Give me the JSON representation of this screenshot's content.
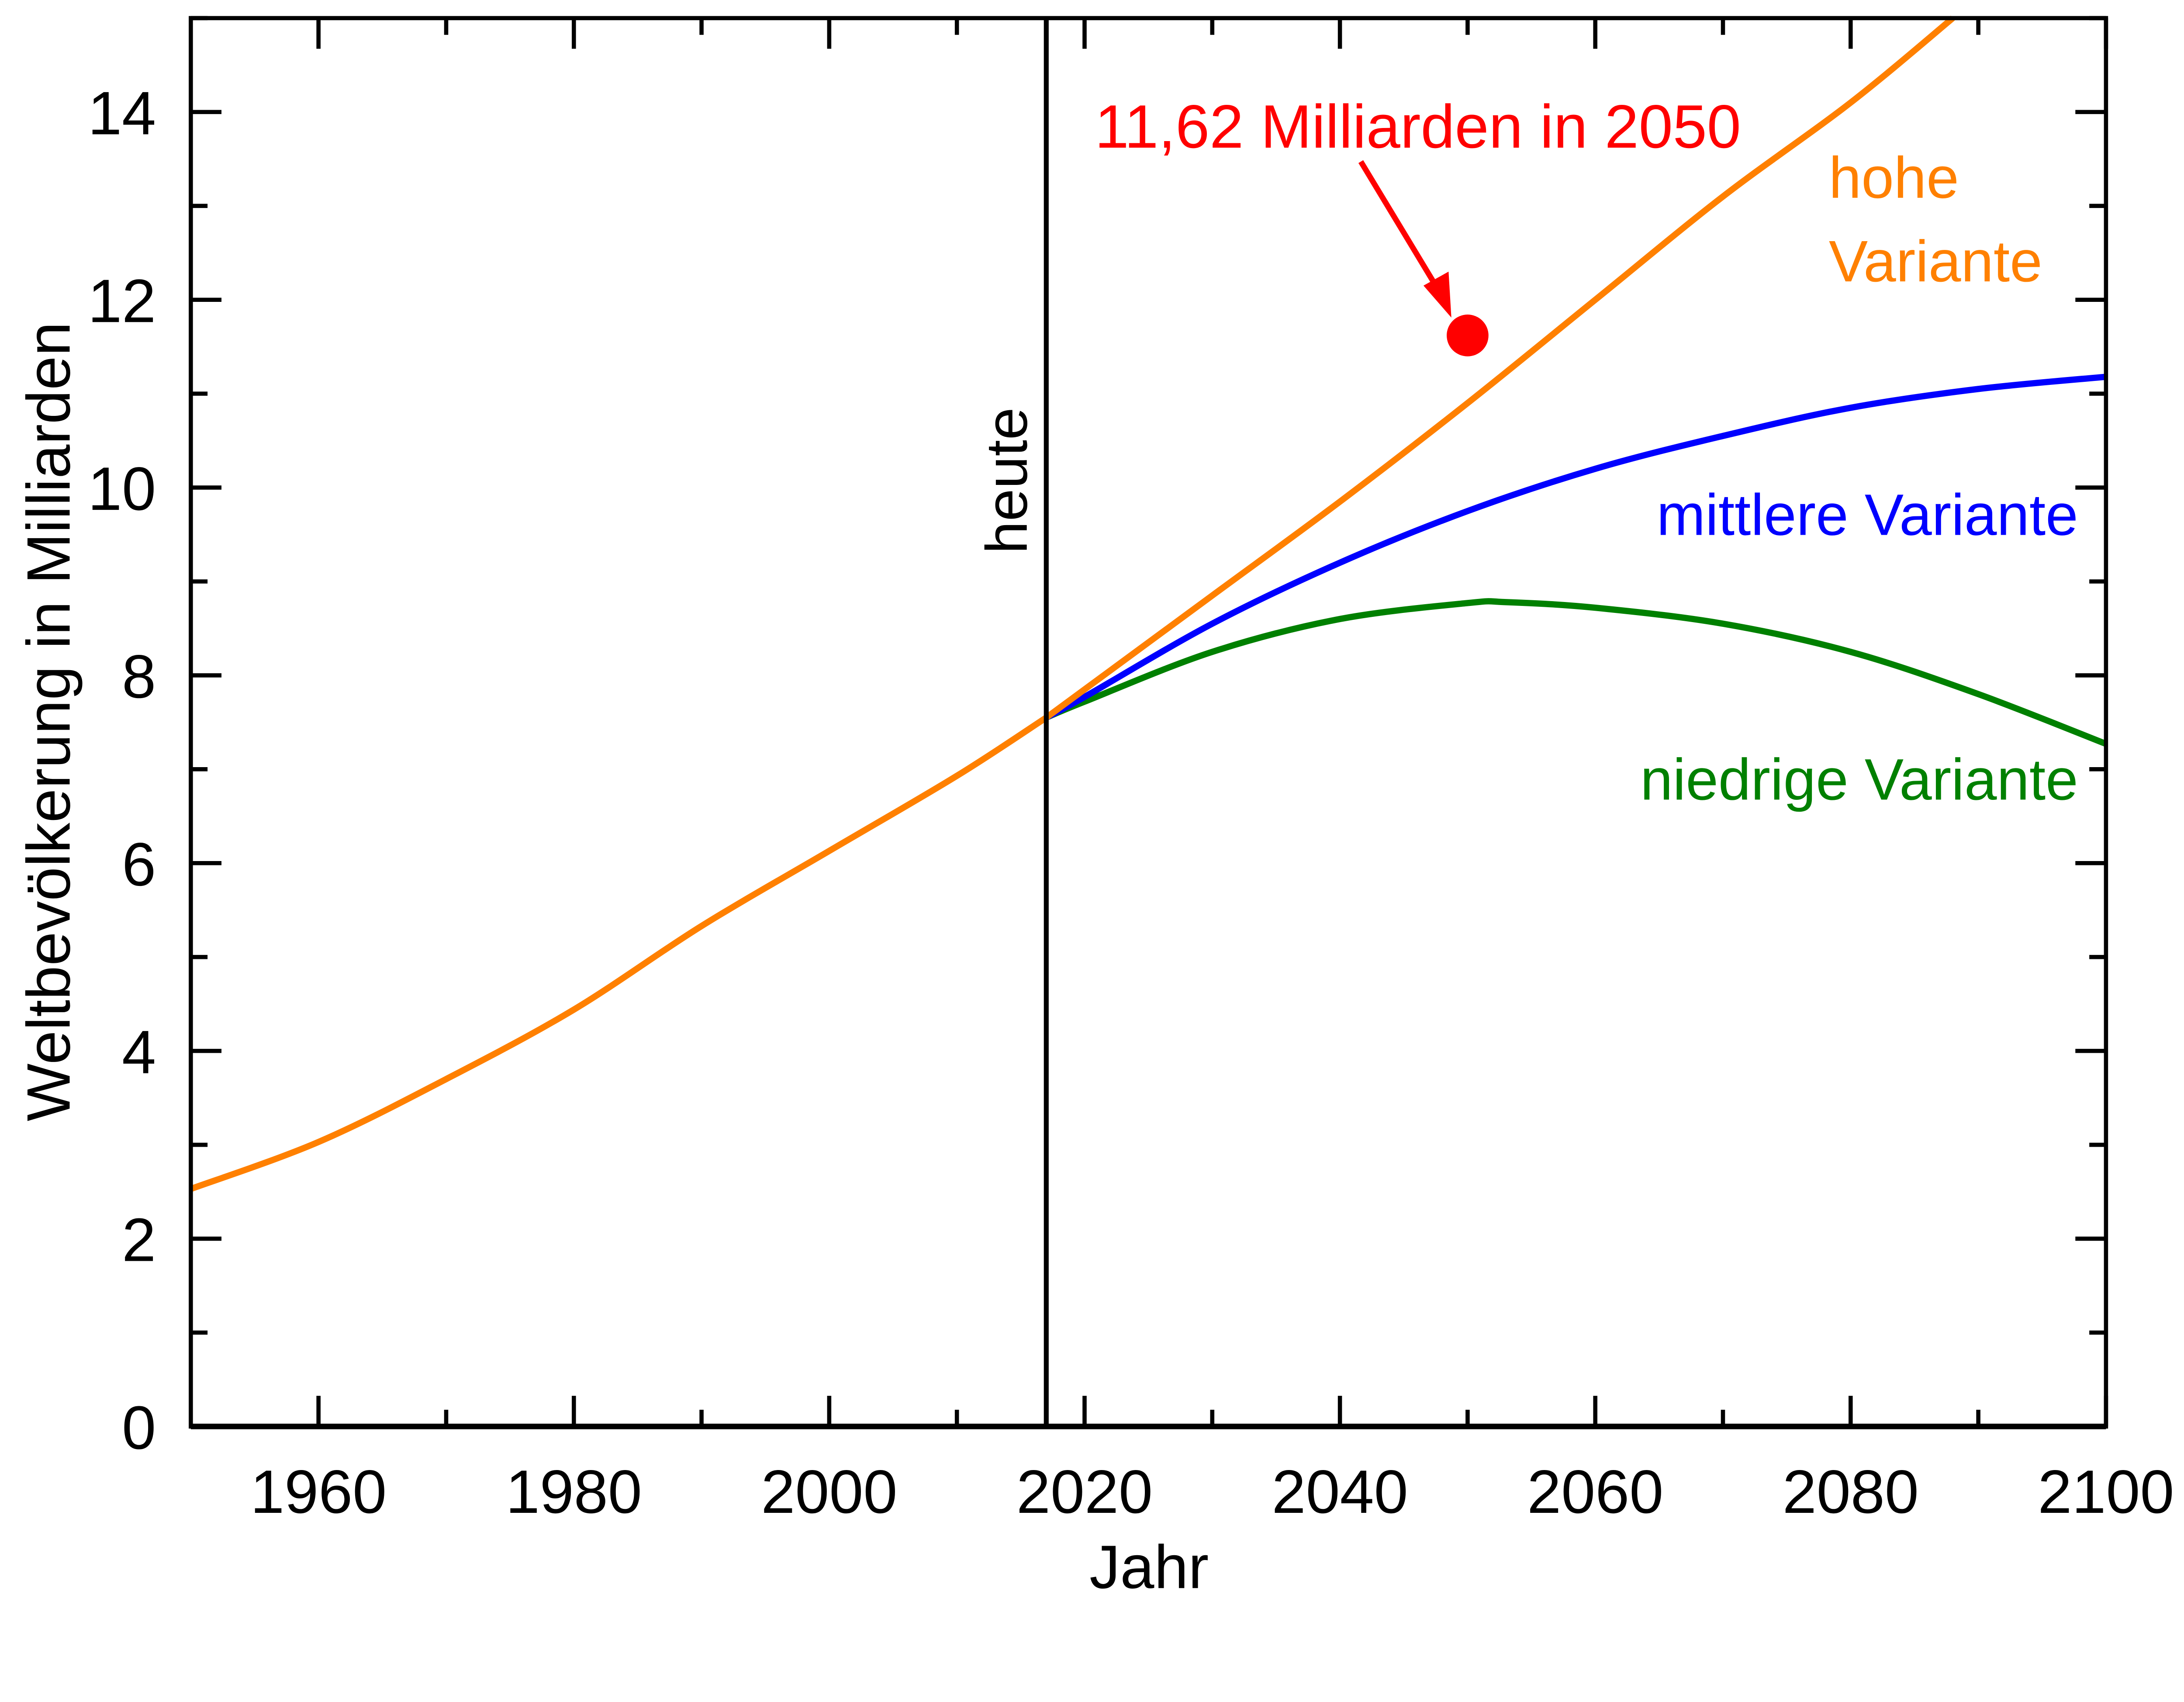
{
  "chart_data": {
    "type": "line",
    "xlabel": "Jahr",
    "ylabel": "Weltbevölkerung in Milliarden",
    "xlim": [
      1950,
      2100
    ],
    "ylim": [
      0,
      15
    ],
    "xticks": [
      1960,
      1980,
      2000,
      2020,
      2040,
      2060,
      2080,
      2100
    ],
    "yticks": [
      0,
      2,
      4,
      6,
      8,
      10,
      12,
      14
    ],
    "grid": false,
    "series": [
      {
        "name": "",
        "color": "#ff8000",
        "x": [
          1950,
          1960,
          1970,
          1980,
          1990,
          2000,
          2010,
          2017
        ],
        "y": [
          2.53,
          3.03,
          3.7,
          4.44,
          5.33,
          6.13,
          6.93,
          7.55
        ]
      },
      {
        "name": "hohe Variante",
        "color": "#ff8000",
        "x": [
          2017,
          2020,
          2030,
          2040,
          2050,
          2060,
          2070,
          2080,
          2088
        ],
        "y": [
          7.55,
          7.85,
          8.85,
          9.85,
          10.9,
          12.0,
          13.1,
          14.1,
          15.0
        ]
      },
      {
        "name": "mittlere Variante",
        "color": "#0000ff",
        "x": [
          2017,
          2020,
          2030,
          2040,
          2050,
          2060,
          2070,
          2080,
          2090,
          2100
        ],
        "y": [
          7.55,
          7.77,
          8.55,
          9.2,
          9.75,
          10.2,
          10.55,
          10.85,
          11.05,
          11.18
        ]
      },
      {
        "name": "niedrige Variante",
        "color": "#008000",
        "x": [
          2017,
          2020,
          2030,
          2040,
          2050,
          2053,
          2060,
          2070,
          2080,
          2090,
          2100
        ],
        "y": [
          7.55,
          7.72,
          8.25,
          8.6,
          8.77,
          8.78,
          8.72,
          8.55,
          8.25,
          7.8,
          7.27
        ]
      }
    ],
    "labels": {
      "hohe_1": "hohe",
      "hohe_2": "Variante",
      "mittlere": "mittlere Variante",
      "niedrige": "niedrige Variante"
    },
    "vline": {
      "x": 2017,
      "label": "heute"
    },
    "annotation": {
      "text": "11,62 Milliarden in 2050",
      "x": 2050,
      "y": 11.62,
      "color": "#ff0000"
    }
  }
}
